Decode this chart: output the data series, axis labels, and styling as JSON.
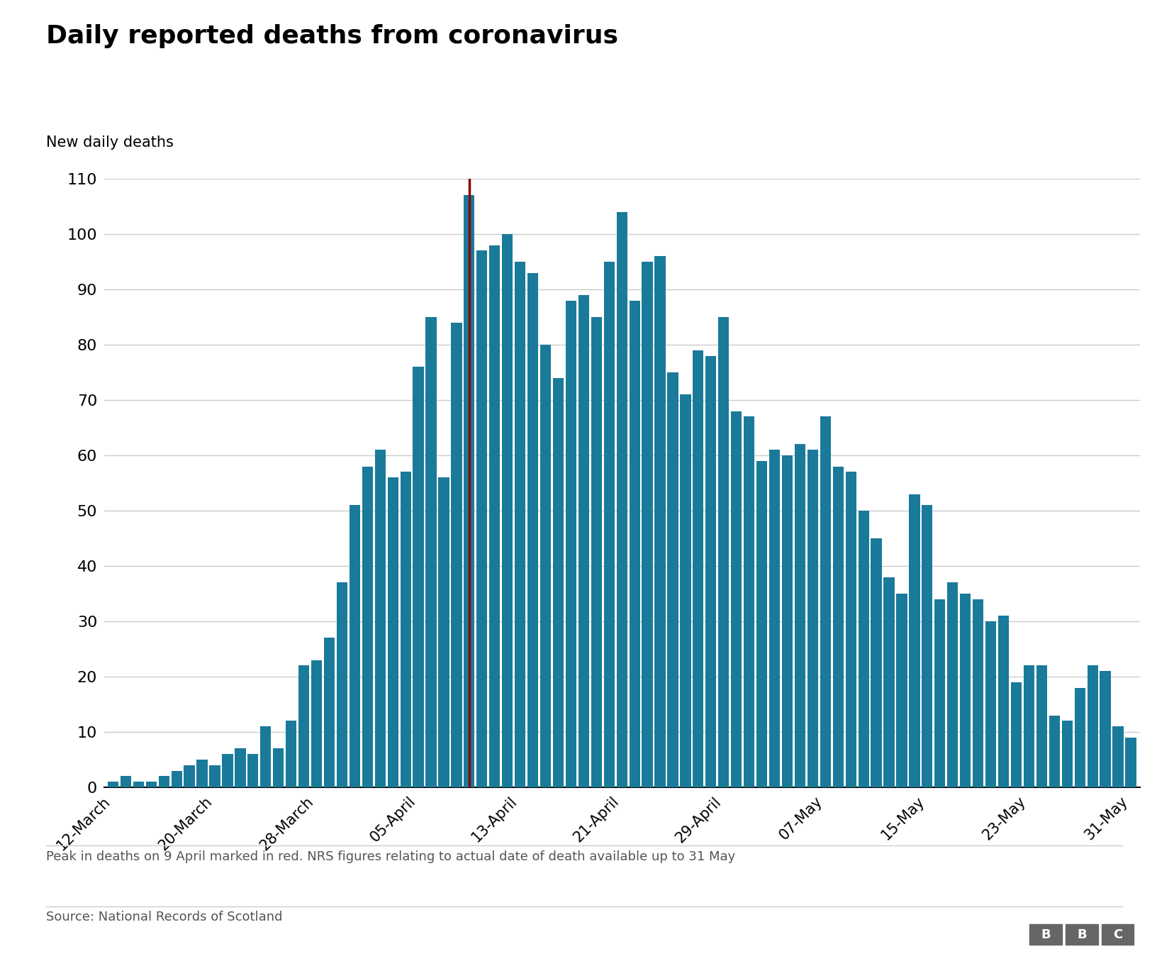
{
  "title": "Daily reported deaths from coronavirus",
  "ylabel": "New daily deaths",
  "bar_color": "#1a7a9a",
  "peak_color": "#8b0000",
  "background_color": "#ffffff",
  "grid_color": "#cccccc",
  "text_color": "#000000",
  "footnote_color": "#555555",
  "ylim": [
    0,
    110
  ],
  "yticks": [
    0,
    10,
    20,
    30,
    40,
    50,
    60,
    70,
    80,
    90,
    100,
    110
  ],
  "footnote": "Peak in deaths on 9 April marked in red. NRS figures relating to actual date of death available up to 31 May",
  "source": "Source: National Records of Scotland",
  "values": [
    1,
    2,
    1,
    1,
    2,
    3,
    4,
    5,
    4,
    6,
    7,
    6,
    11,
    7,
    12,
    22,
    23,
    27,
    37,
    51,
    58,
    61,
    56,
    57,
    76,
    85,
    56,
    84,
    107,
    97,
    98,
    100,
    95,
    93,
    80,
    74,
    88,
    89,
    85,
    95,
    104,
    88,
    95,
    96,
    75,
    71,
    79,
    78,
    85,
    68,
    67,
    59,
    61,
    60,
    62,
    61,
    67,
    58,
    57,
    50,
    45,
    38,
    35,
    53,
    51,
    34,
    37,
    35,
    34,
    30,
    31,
    19,
    22,
    22,
    13,
    12,
    18,
    22,
    21,
    11,
    9
  ],
  "peak_index": 28,
  "xtick_positions": [
    0,
    8,
    16,
    24,
    32,
    40,
    48,
    56,
    64,
    72,
    80
  ],
  "xtick_labels": [
    "12-March",
    "20-March",
    "28-March",
    "05-April",
    "13-April",
    "21-April",
    "29-April",
    "07-May",
    "15-May",
    "23-May",
    "31-May"
  ],
  "title_fontsize": 26,
  "ylabel_fontsize": 15,
  "ytick_fontsize": 16,
  "xtick_fontsize": 15,
  "footnote_fontsize": 13,
  "source_fontsize": 13,
  "bbc_color": "#666666"
}
